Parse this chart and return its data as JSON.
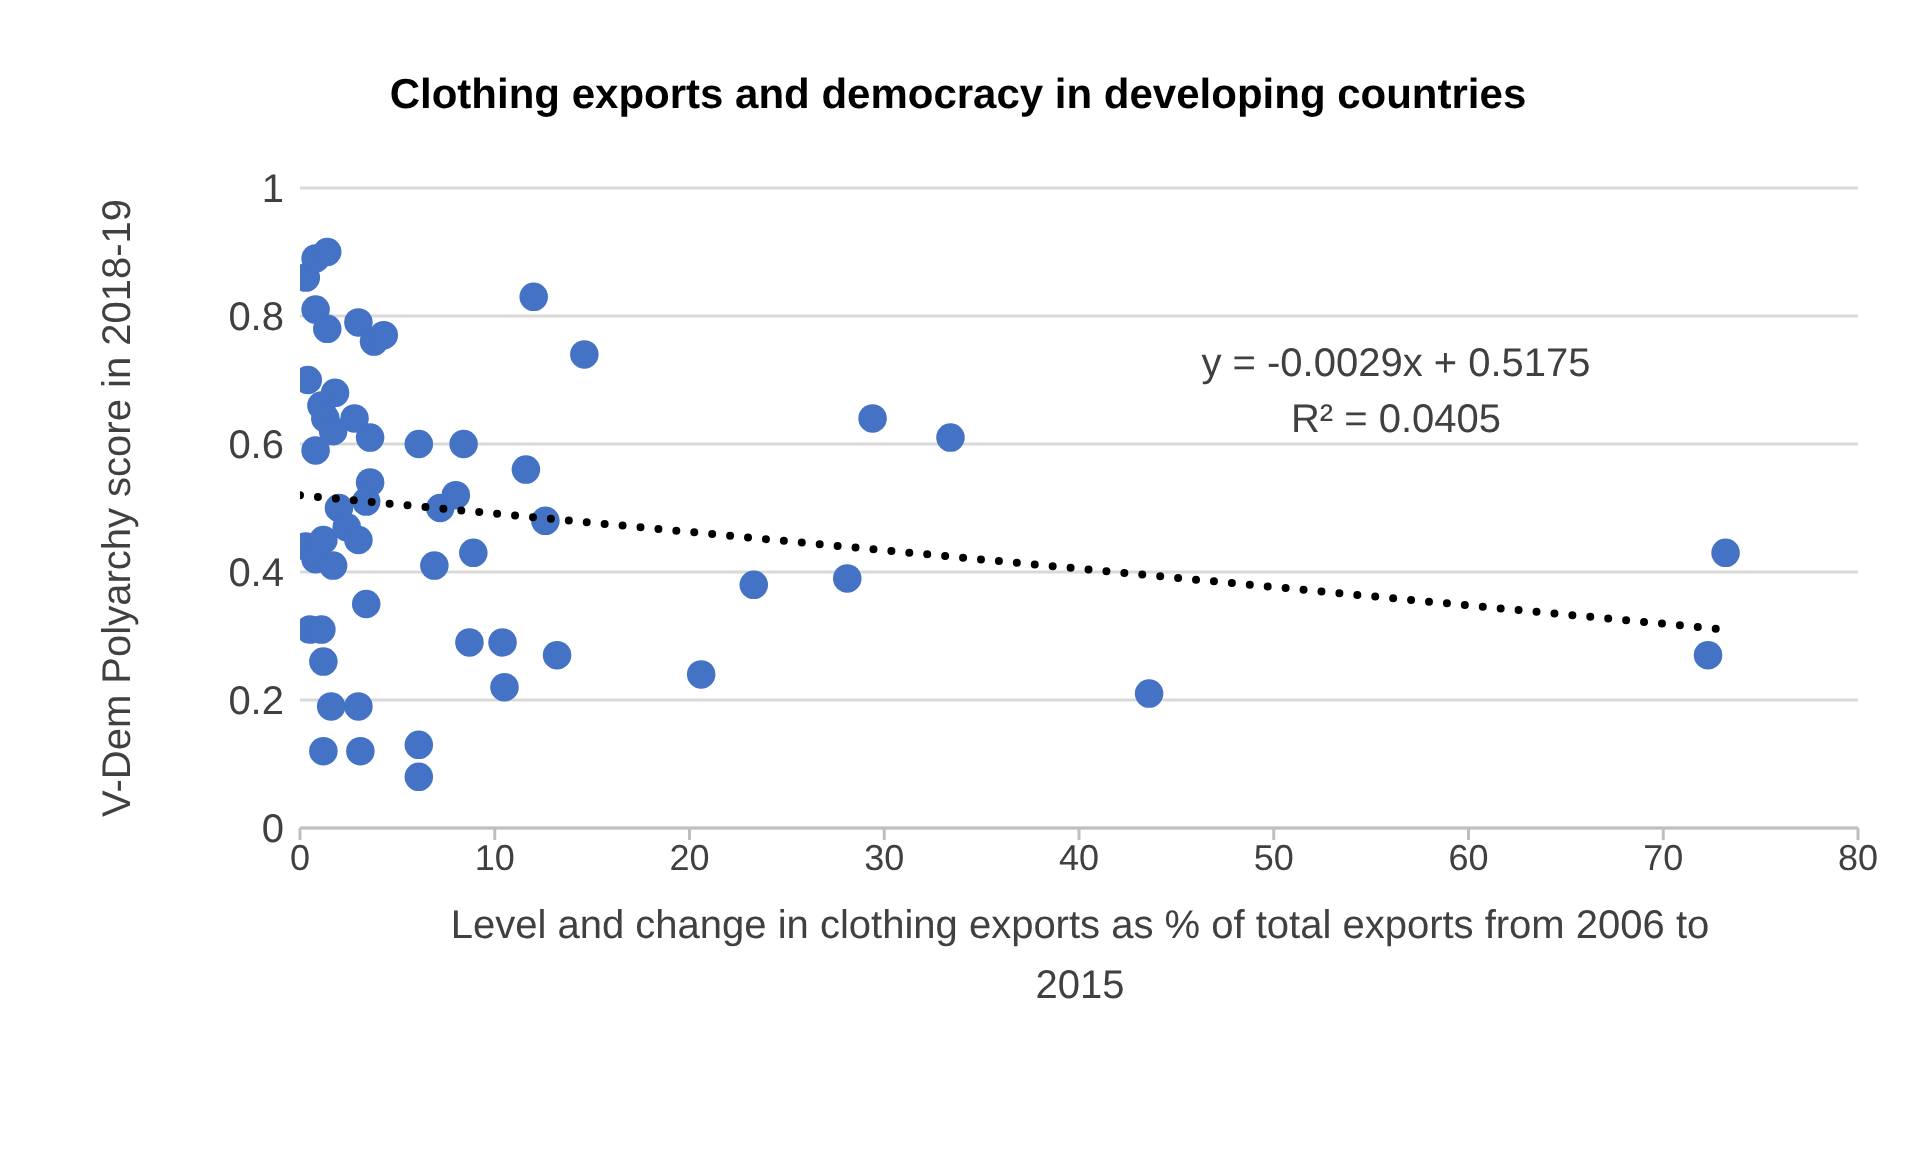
{
  "chart_data": {
    "type": "scatter",
    "title": "Clothing exports and democracy in developing countries",
    "xlabel": "Level and change in clothing exports as % of total exports from 2006 to 2015",
    "ylabel": "V-Dem Polyarchy score in 2018-19",
    "annotations": [
      "y = -0.0029x + 0.5175",
      "R² = 0.0405"
    ],
    "xlim": [
      0,
      80
    ],
    "xticks": [
      0,
      10,
      20,
      30,
      40,
      50,
      60,
      70,
      80
    ],
    "ylim": [
      0,
      1
    ],
    "yticks": [
      0,
      0.2,
      0.4,
      0.6,
      0.8,
      1
    ],
    "grid": "y",
    "marker": "circle",
    "series": [
      {
        "color": "#4472c4",
        "x": [
          0.3,
          0.8,
          1.4,
          0.8,
          1.4,
          3.0,
          3.8,
          4.3,
          0.4,
          1.8,
          1.1,
          1.3,
          2.8,
          1.7,
          0.8,
          3.6,
          6.1,
          8.4,
          12.0,
          14.6,
          11.6,
          3.6,
          2.0,
          3.4,
          7.2,
          8.0,
          12.6,
          0.3,
          0.8,
          1.7,
          1.2,
          2.4,
          3.0,
          6.9,
          8.9,
          3.4,
          0.5,
          1.1,
          1.2,
          8.7,
          10.4,
          13.2,
          10.5,
          1.6,
          3.0,
          1.2,
          3.1,
          6.1,
          6.1,
          29.4,
          33.4,
          23.3,
          28.1,
          20.6,
          43.6,
          73.2,
          72.3
        ],
        "values": [
          0.86,
          0.89,
          0.9,
          0.81,
          0.78,
          0.79,
          0.76,
          0.77,
          0.7,
          0.68,
          0.66,
          0.64,
          0.64,
          0.62,
          0.59,
          0.61,
          0.6,
          0.6,
          0.83,
          0.74,
          0.56,
          0.54,
          0.5,
          0.51,
          0.5,
          0.52,
          0.48,
          0.44,
          0.42,
          0.41,
          0.45,
          0.47,
          0.45,
          0.41,
          0.43,
          0.35,
          0.31,
          0.31,
          0.26,
          0.29,
          0.29,
          0.27,
          0.22,
          0.19,
          0.19,
          0.12,
          0.12,
          0.13,
          0.08,
          0.64,
          0.61,
          0.38,
          0.39,
          0.24,
          0.21,
          0.43,
          0.27
        ]
      },
      {
        "type": "line",
        "color": "#000000",
        "line_style": "dotted",
        "marker": "none",
        "x": [
          0,
          73.2
        ],
        "values": [
          0.52,
          0.31
        ]
      }
    ]
  }
}
